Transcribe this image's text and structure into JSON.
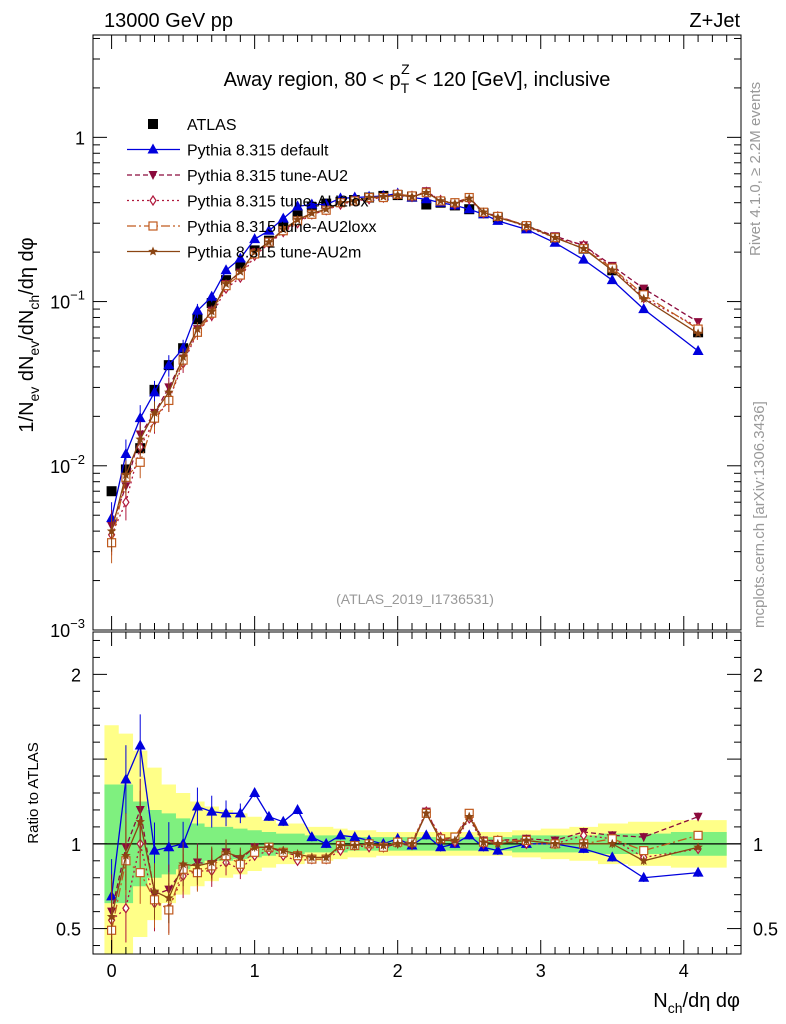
{
  "header": {
    "left": "13000 GeV pp",
    "right": "Z+Jet"
  },
  "side_labels": {
    "rivet": "Rivet 4.1.0, ≥ 2.2M events",
    "mcplots": "mcplots.cern.ch [arXiv:1306.3436]"
  },
  "colors": {
    "atlas": "#000000",
    "default": "#0000dd",
    "au2": "#8b0a3c",
    "au2lox": "#b0183c",
    "au2loxx": "#c05a1e",
    "au2m": "#8b4513",
    "band_inner": "#7ff07f",
    "band_outer": "#ffff88"
  },
  "chart_data": [
    {
      "type": "line",
      "scale": "log",
      "title": "Away region, 80 < p_T^Z < 120 [GeV], inclusive",
      "title_parts": {
        "pre": "Away region, 80 < p",
        "sub": "T",
        "sup": "Z",
        "post": " < 120 [GeV], inclusive"
      },
      "ylabel": "1/N_ev dN_ev/dN_ch/dη dφ",
      "ylabel_parts": {
        "a": "1/N",
        "a_sub": "ev",
        "b": " dN",
        "b_sub": "ev",
        "c": "/dN",
        "c_sub": "ch",
        "d": "/dη dφ"
      },
      "xlim": [
        -0.13,
        4.4
      ],
      "ylim": [
        0.001,
        4.2
      ],
      "yticks": [
        {
          "value": 1,
          "label": "1"
        },
        {
          "value": 0.1,
          "base": "10",
          "exp": "−1"
        },
        {
          "value": 0.01,
          "base": "10",
          "exp": "−2"
        },
        {
          "value": 0.001,
          "base": "10",
          "exp": "−3"
        }
      ],
      "watermark": "(ATLAS_2019_I1736531)",
      "x": [
        0.0,
        0.1,
        0.2,
        0.3,
        0.4,
        0.5,
        0.6,
        0.7,
        0.8,
        0.9,
        1.0,
        1.1,
        1.2,
        1.3,
        1.4,
        1.5,
        1.6,
        1.7,
        1.8,
        1.9,
        2.0,
        2.1,
        2.2,
        2.3,
        2.4,
        2.5,
        2.6,
        2.7,
        2.9,
        3.1,
        3.3,
        3.5,
        3.72,
        4.1
      ],
      "series": [
        {
          "name": "ATLAS",
          "marker": "square",
          "color_key": "atlas",
          "values": [
            0.007,
            0.0095,
            0.0128,
            0.029,
            0.041,
            0.052,
            0.078,
            0.098,
            0.135,
            0.165,
            0.205,
            0.235,
            0.285,
            0.335,
            0.375,
            0.395,
            0.405,
            0.415,
            0.43,
            0.44,
            0.445,
            0.435,
            0.39,
            0.4,
            0.385,
            0.365,
            0.345,
            0.325,
            0.285,
            0.245,
            0.21,
            0.155,
            0.115,
            0.065
          ]
        },
        {
          "name": "Pythia 8.315 default",
          "marker": "triangle-up",
          "dash": "",
          "color_key": "default",
          "values": [
            0.0048,
            0.0118,
            0.0195,
            0.028,
            0.041,
            0.052,
            0.088,
            0.107,
            0.155,
            0.183,
            0.24,
            0.27,
            0.32,
            0.38,
            0.39,
            0.39,
            0.425,
            0.43,
            0.435,
            0.44,
            0.455,
            0.43,
            0.42,
            0.4,
            0.385,
            0.365,
            0.34,
            0.31,
            0.275,
            0.228,
            0.18,
            0.135,
            0.09,
            0.05
          ]
        },
        {
          "name": "Pythia 8.315 tune-AU2",
          "marker": "triangle-down",
          "dash": "5,3",
          "color_key": "au2",
          "values": [
            0.0043,
            0.0075,
            0.0155,
            0.021,
            0.03,
            0.045,
            0.068,
            0.088,
            0.128,
            0.15,
            0.2,
            0.23,
            0.27,
            0.31,
            0.34,
            0.36,
            0.4,
            0.41,
            0.43,
            0.43,
            0.445,
            0.43,
            0.47,
            0.41,
            0.4,
            0.43,
            0.35,
            0.33,
            0.29,
            0.25,
            0.22,
            0.165,
            0.12,
            0.075
          ]
        },
        {
          "name": "Pythia 8.315 tune-AU2lox",
          "marker": "diamond",
          "dash": "2,3",
          "color_key": "au2lox",
          "values": [
            0.0038,
            0.006,
            0.013,
            0.019,
            0.025,
            0.042,
            0.065,
            0.082,
            0.12,
            0.14,
            0.19,
            0.225,
            0.265,
            0.3,
            0.34,
            0.36,
            0.39,
            0.41,
            0.42,
            0.43,
            0.45,
            0.44,
            0.465,
            0.415,
            0.39,
            0.42,
            0.345,
            0.33,
            0.285,
            0.245,
            0.22,
            0.16,
            0.105,
            0.07
          ]
        },
        {
          "name": "Pythia 8.315 tune-AU2loxx",
          "marker": "open-square",
          "dash": "9,3,2,3",
          "color_key": "au2loxx",
          "values": [
            0.0034,
            0.0085,
            0.0105,
            0.0195,
            0.025,
            0.044,
            0.065,
            0.085,
            0.125,
            0.145,
            0.195,
            0.23,
            0.27,
            0.31,
            0.34,
            0.36,
            0.4,
            0.41,
            0.43,
            0.43,
            0.45,
            0.44,
            0.46,
            0.41,
            0.4,
            0.43,
            0.35,
            0.33,
            0.29,
            0.245,
            0.21,
            0.16,
            0.11,
            0.068
          ]
        },
        {
          "name": "Pythia 8.315 tune-AU2m",
          "marker": "star",
          "dash": "",
          "color_key": "au2m",
          "values": [
            0.004,
            0.0088,
            0.0145,
            0.021,
            0.028,
            0.046,
            0.068,
            0.087,
            0.128,
            0.152,
            0.2,
            0.23,
            0.275,
            0.315,
            0.345,
            0.365,
            0.4,
            0.41,
            0.43,
            0.435,
            0.445,
            0.435,
            0.46,
            0.41,
            0.395,
            0.425,
            0.35,
            0.325,
            0.29,
            0.245,
            0.21,
            0.155,
            0.104,
            0.064
          ]
        }
      ]
    },
    {
      "type": "line",
      "scale": "linear",
      "ylabel": "Ratio to ATLAS",
      "xlabel": "N_ch/dη dφ",
      "xlabel_parts": {
        "a": "N",
        "a_sub": "ch",
        "b": "/dη dφ"
      },
      "xlim": [
        -0.13,
        4.4
      ],
      "ylim": [
        0.35,
        2.25
      ],
      "yticks": [
        {
          "value": 0.5,
          "label": "0.5"
        },
        {
          "value": 1,
          "label": "1"
        },
        {
          "value": 2,
          "label": "2"
        }
      ],
      "xticks": [
        {
          "value": 0,
          "label": "0"
        },
        {
          "value": 1,
          "label": "1"
        },
        {
          "value": 2,
          "label": "2"
        },
        {
          "value": 3,
          "label": "3"
        },
        {
          "value": 4,
          "label": "4"
        }
      ],
      "bands": {
        "inner_halfwidth": [
          0.35,
          0.35,
          0.25,
          0.2,
          0.18,
          0.15,
          0.12,
          0.1,
          0.1,
          0.09,
          0.08,
          0.07,
          0.06,
          0.06,
          0.05,
          0.05,
          0.05,
          0.04,
          0.04,
          0.04,
          0.04,
          0.04,
          0.04,
          0.04,
          0.04,
          0.04,
          0.04,
          0.04,
          0.05,
          0.05,
          0.05,
          0.06,
          0.06,
          0.07
        ],
        "outer_halfwidth": [
          0.7,
          0.65,
          0.55,
          0.45,
          0.35,
          0.3,
          0.25,
          0.22,
          0.2,
          0.18,
          0.16,
          0.14,
          0.12,
          0.12,
          0.1,
          0.1,
          0.09,
          0.08,
          0.08,
          0.07,
          0.07,
          0.07,
          0.07,
          0.07,
          0.07,
          0.07,
          0.07,
          0.07,
          0.08,
          0.09,
          0.1,
          0.12,
          0.13,
          0.14
        ]
      },
      "series": [
        {
          "name": "Pythia 8.315 default",
          "color_key": "default",
          "marker": "triangle-up",
          "dash": "",
          "values": [
            0.69,
            1.38,
            1.58,
            0.96,
            0.98,
            1.0,
            1.22,
            1.19,
            1.18,
            1.18,
            1.3,
            1.16,
            1.13,
            1.2,
            1.04,
            1.0,
            1.05,
            1.04,
            1.02,
            1.0,
            1.03,
            0.99,
            1.05,
            0.98,
            1.0,
            1.05,
            0.98,
            0.96,
            1.0,
            1.0,
            0.97,
            0.92,
            0.8,
            0.83
          ]
        },
        {
          "name": "Pythia 8.315 tune-AU2",
          "color_key": "au2",
          "marker": "triangle-down",
          "dash": "5,3",
          "values": [
            0.6,
            0.98,
            1.2,
            0.7,
            0.73,
            0.85,
            0.89,
            0.88,
            0.95,
            0.91,
            0.98,
            0.98,
            0.95,
            0.93,
            0.91,
            0.91,
            0.99,
            0.99,
            1.0,
            0.98,
            1.0,
            0.99,
            1.19,
            1.03,
            1.03,
            1.17,
            1.02,
            1.02,
            1.03,
            1.02,
            1.07,
            1.05,
            1.04,
            1.16
          ]
        },
        {
          "name": "Pythia 8.315 tune-AU2lox",
          "color_key": "au2lox",
          "marker": "diamond",
          "dash": "2,3",
          "values": [
            0.55,
            0.62,
            1.0,
            0.65,
            0.62,
            0.81,
            0.84,
            0.84,
            0.89,
            0.85,
            0.93,
            0.96,
            0.93,
            0.9,
            0.91,
            0.91,
            0.96,
            0.99,
            0.98,
            0.98,
            1.01,
            1.01,
            1.19,
            1.04,
            1.01,
            1.15,
            1.0,
            1.02,
            1.0,
            1.0,
            1.05,
            1.03,
            0.92,
            0.97
          ]
        },
        {
          "name": "Pythia 8.315 tune-AU2loxx",
          "color_key": "au2loxx",
          "marker": "open-square",
          "dash": "9,3,2,3",
          "values": [
            0.49,
            0.9,
            0.83,
            0.67,
            0.61,
            0.85,
            0.83,
            0.87,
            0.93,
            0.88,
            0.95,
            0.98,
            0.95,
            0.93,
            0.91,
            0.91,
            0.99,
            0.99,
            1.0,
            0.98,
            1.01,
            1.01,
            1.18,
            1.03,
            1.04,
            1.18,
            1.01,
            1.02,
            1.02,
            1.0,
            1.0,
            1.03,
            0.96,
            1.05
          ]
        },
        {
          "name": "Pythia 8.315 tune-AU2m",
          "color_key": "au2m",
          "marker": "star",
          "dash": "",
          "values": [
            0.57,
            0.93,
            1.13,
            0.72,
            0.68,
            0.88,
            0.87,
            0.89,
            0.95,
            0.92,
            0.98,
            0.98,
            0.96,
            0.94,
            0.92,
            0.92,
            0.99,
            0.99,
            1.0,
            0.99,
            1.0,
            1.0,
            1.18,
            1.02,
            1.02,
            1.16,
            1.01,
            1.0,
            1.02,
            1.0,
            1.0,
            1.0,
            0.9,
            0.98
          ]
        }
      ]
    }
  ]
}
